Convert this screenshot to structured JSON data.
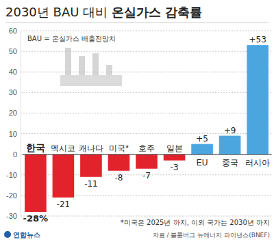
{
  "chart_data": {
    "type": "bar",
    "title": "2030년 BAU 대비 온실가스 감축률",
    "subtitle": "BAU = 온실가스 배출전망치",
    "categories": [
      "한국",
      "멕시코",
      "캐나다",
      "미국*",
      "호주",
      "일본",
      "EU",
      "중국",
      "러시아"
    ],
    "values": [
      -28,
      -21,
      -11,
      -8,
      -7,
      -3,
      5,
      9,
      53
    ],
    "value_labels": [
      "-28%",
      "-21",
      "-11",
      "-8",
      "-7",
      "-3",
      "+5",
      "+9",
      "+53"
    ],
    "colors": [
      "#e3232c",
      "#e3232c",
      "#e3232c",
      "#e3232c",
      "#e3232c",
      "#e3232c",
      "#4ba6e0",
      "#4ba6e0",
      "#4ba6e0"
    ],
    "ylim": [
      -30,
      60
    ],
    "yticks": [
      -30,
      -20,
      -10,
      0,
      10,
      20,
      30,
      40,
      50,
      60
    ],
    "grid": true,
    "data_labels": true,
    "annotations": [
      "*미국은 2025년 까지, 이외 국가는 2030년 까지",
      "자료 / 블룸버그 뉴에너지 파이낸스(BNEF)",
      "연합뉴스"
    ]
  }
}
